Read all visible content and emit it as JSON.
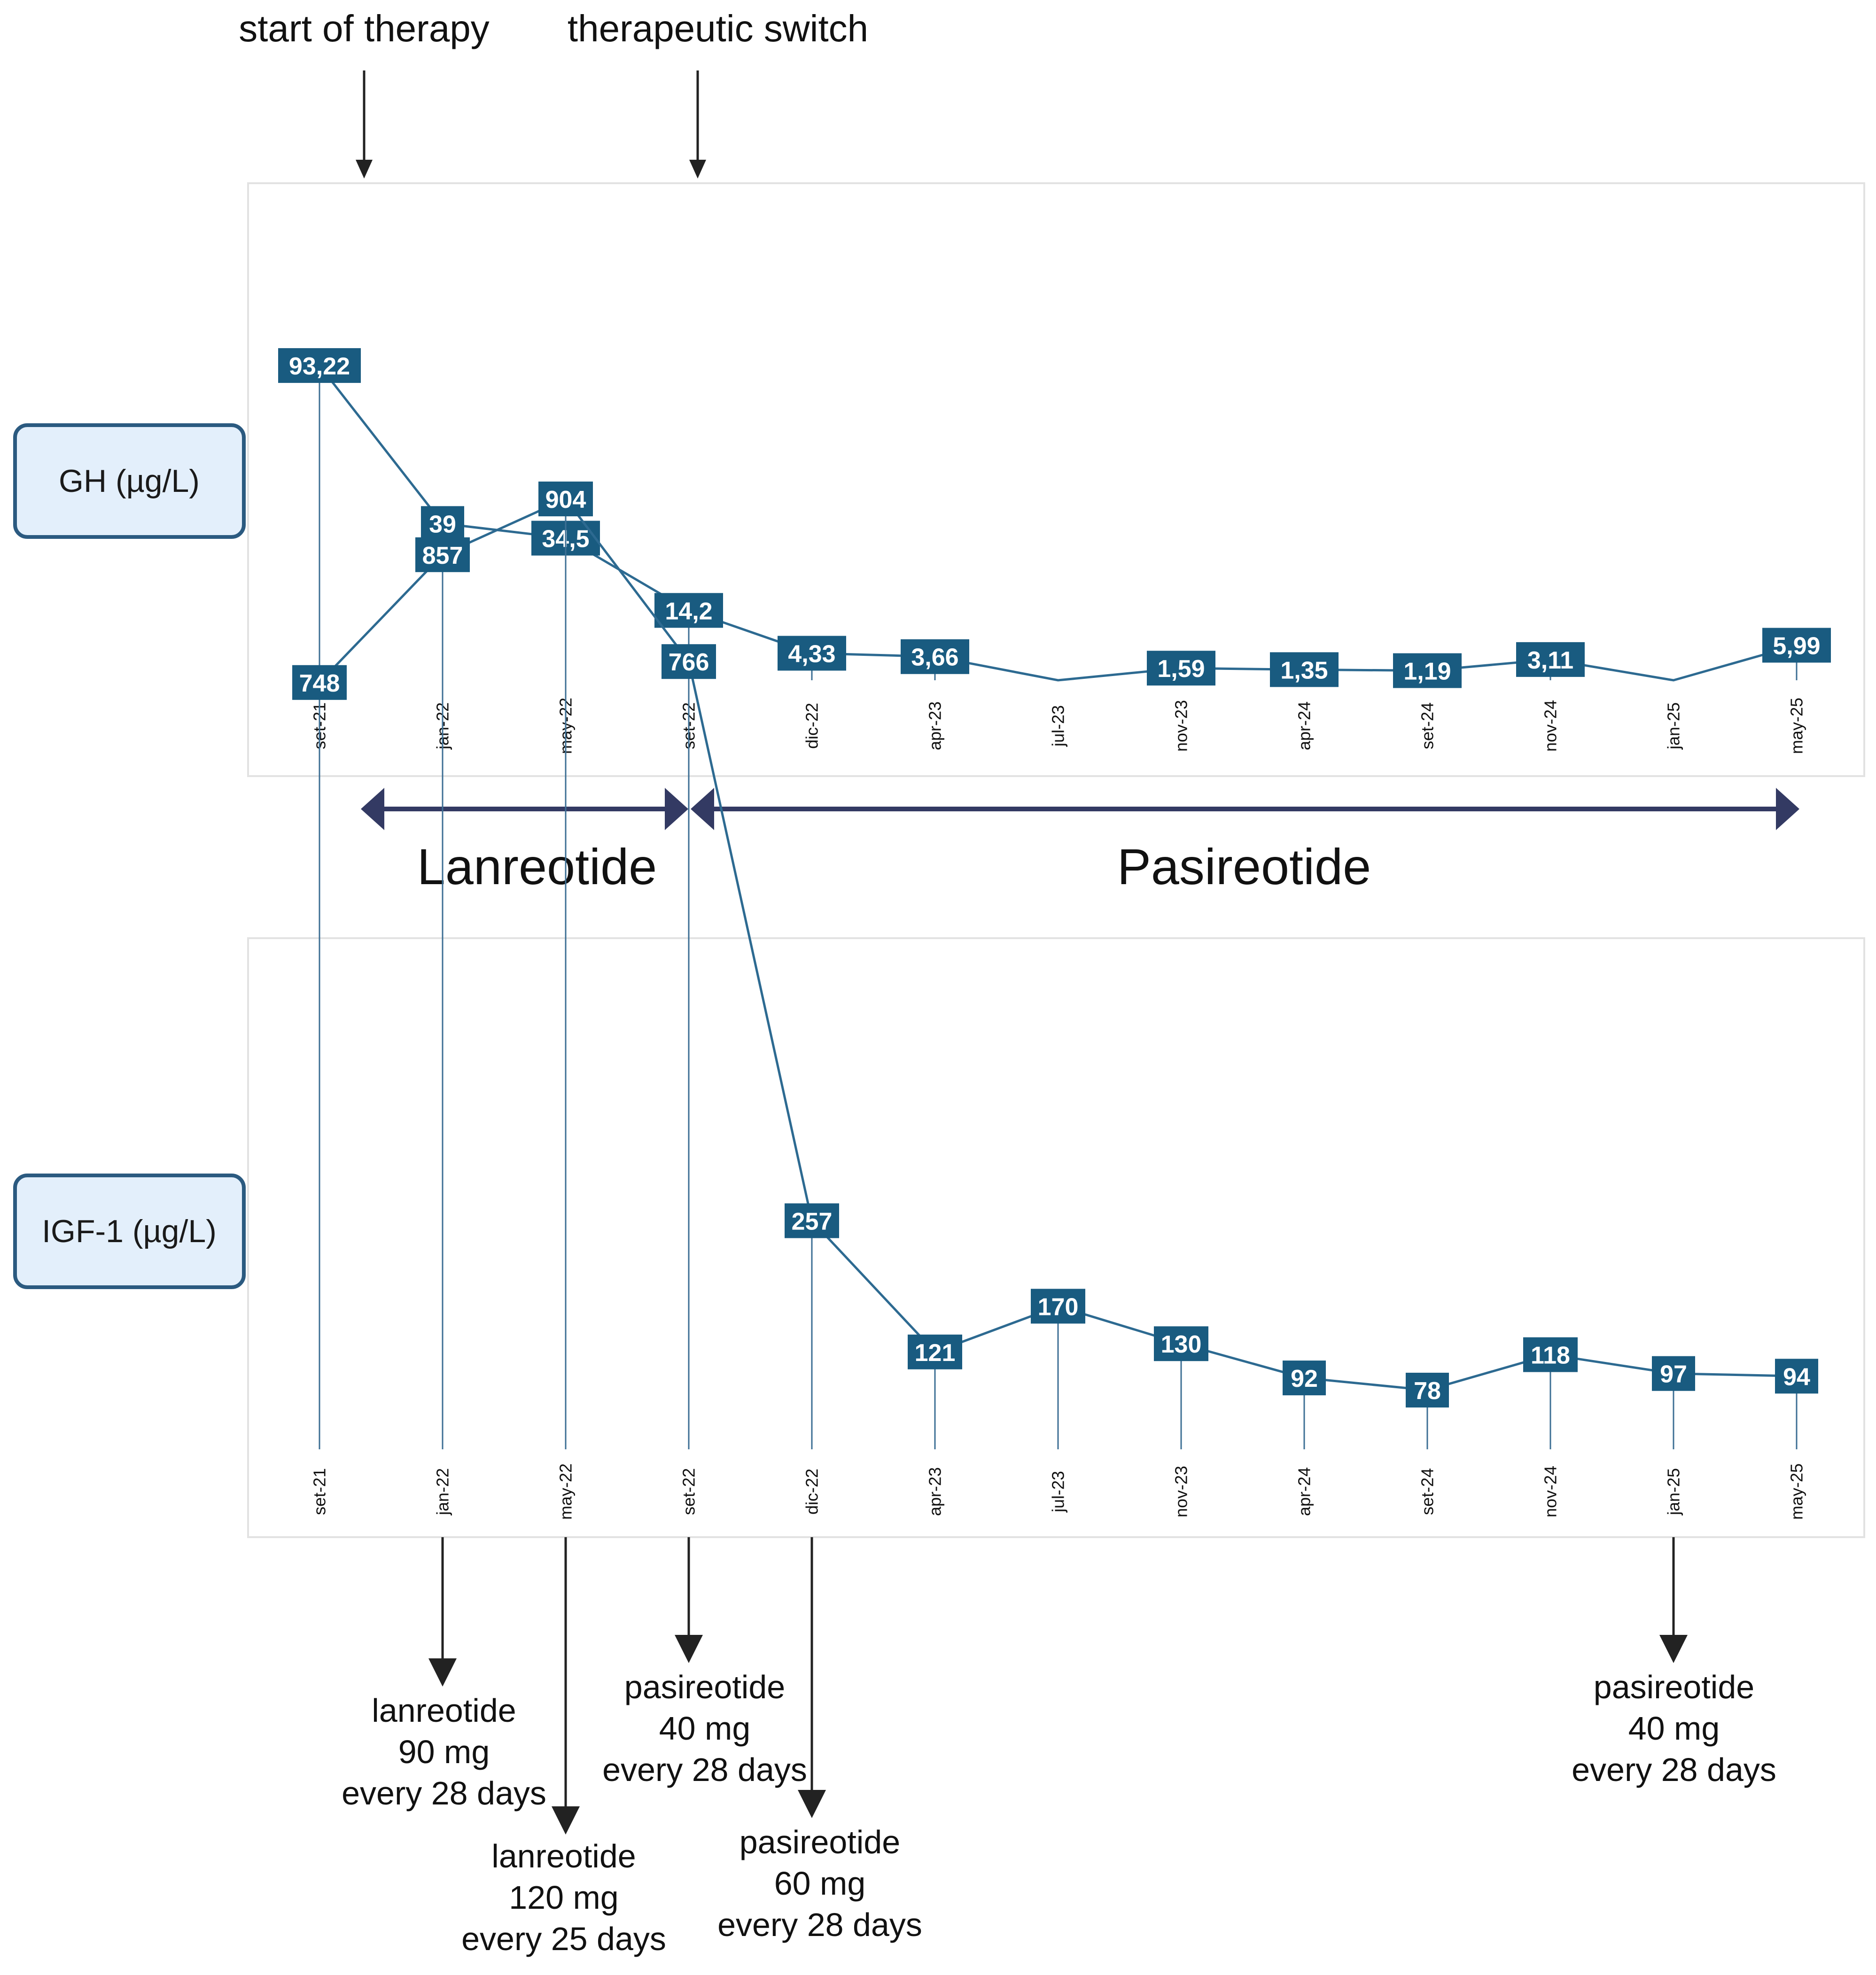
{
  "chart_data": [
    {
      "type": "line",
      "ylabel": "GH (µg/L)",
      "categories": [
        "set-21",
        "jan-22",
        "may-22",
        "set-22",
        "dic-22",
        "apr-23",
        "jul-23",
        "nov-23",
        "apr-24",
        "set-24",
        "nov-24",
        "jan-25",
        "may-25"
      ],
      "values": [
        93.22,
        39,
        34.5,
        14.2,
        4.33,
        3.66,
        0,
        1.59,
        1.35,
        1.19,
        3.11,
        0,
        5.99
      ],
      "value_labels": [
        "93,22",
        "39",
        "34,5",
        "14,2",
        "4,33",
        "3,66",
        null,
        "1,59",
        "1,35",
        "1,19",
        "3,11",
        null,
        "5,99"
      ],
      "ylim": [
        0,
        100
      ]
    },
    {
      "type": "line",
      "ylabel": "IGF-1 (µg/L)",
      "categories": [
        "set-21",
        "jan-22",
        "may-22",
        "set-22",
        "dic-22",
        "apr-23",
        "jul-23",
        "nov-23",
        "apr-24",
        "set-24",
        "nov-24",
        "jan-25",
        "may-25"
      ],
      "values": [
        748,
        857,
        904,
        766,
        257,
        121,
        170,
        130,
        92,
        78,
        118,
        97,
        94
      ],
      "value_labels": [
        "748",
        "857",
        "904",
        "766",
        "257",
        "121",
        "170",
        "130",
        "92",
        "78",
        "118",
        "97",
        "94"
      ],
      "ylim": [
        0,
        1000
      ]
    }
  ],
  "top_events": [
    {
      "label": "start of therapy",
      "category_position": 0.35
    },
    {
      "label": "therapeutic switch",
      "category_position": 3.05
    }
  ],
  "treatment_periods": [
    {
      "label": "Lanreotide",
      "from": 0.35,
      "to": 3.0
    },
    {
      "label": "Pasireotide",
      "from": 3.0,
      "to": 12.0
    }
  ],
  "dose_annotations": [
    {
      "category_index": 1,
      "lines": [
        "lanreotide",
        "90 mg",
        "every 28 days"
      ]
    },
    {
      "category_index": 2,
      "lines": [
        "lanreotide",
        "120 mg",
        "every 25 days"
      ]
    },
    {
      "category_index": 3,
      "lines": [
        "pasireotide",
        "40 mg",
        "every 28 days"
      ]
    },
    {
      "category_index": 4,
      "lines": [
        "pasireotide",
        "60 mg",
        "every 28 days"
      ]
    },
    {
      "category_index": 11,
      "lines": [
        "pasireotide",
        "40 mg",
        "every 28 days"
      ]
    }
  ],
  "colors": {
    "marker": "#195b80",
    "line": "#2d6a91",
    "period_arrow": "#333a63",
    "label_box_fill": "#e3effb",
    "label_box_stroke": "#2b5a80"
  }
}
